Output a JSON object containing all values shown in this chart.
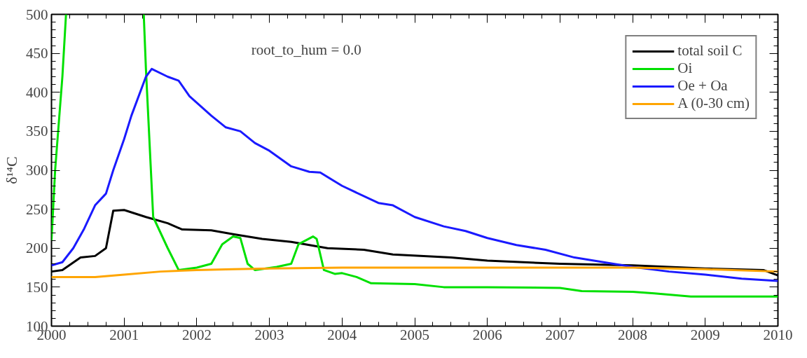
{
  "chart_data": {
    "type": "line",
    "ylabel": "δ¹⁴C",
    "xlim": [
      2000,
      2010
    ],
    "ylim": [
      100,
      500
    ],
    "xticks": [
      2000,
      2001,
      2002,
      2003,
      2004,
      2005,
      2006,
      2007,
      2008,
      2009,
      2010
    ],
    "yticks": [
      100,
      150,
      200,
      250,
      300,
      350,
      400,
      450,
      500
    ],
    "grid": false,
    "legend": "top right",
    "line_style": "solid",
    "marker": "none",
    "annotations": [
      "root_to_hum = 0.0"
    ],
    "series": [
      {
        "name": "total soil C",
        "color": "#000000",
        "x": [
          2000,
          2000.15,
          2000.4,
          2000.6,
          2000.75,
          2000.85,
          2001.0,
          2001.3,
          2001.6,
          2001.8,
          2002.2,
          2002.5,
          2002.9,
          2003.3,
          2003.8,
          2004.3,
          2004.7,
          2005.5,
          2006,
          2007,
          2008,
          2009,
          2009.8,
          2010
        ],
        "values": [
          170,
          172,
          188,
          190,
          200,
          248,
          249,
          240,
          232,
          224,
          223,
          218,
          212,
          208,
          200,
          198,
          192,
          188,
          184,
          180,
          178,
          174,
          172,
          165
        ]
      },
      {
        "name": "Oi",
        "color": "#00e000",
        "x": [
          2000,
          2000.05,
          2000.15,
          2000.2,
          2000.7,
          2001.27,
          2001.3,
          2001.4,
          2001.5,
          2001.6,
          2001.75,
          2002.0,
          2002.2,
          2002.35,
          2002.5,
          2002.6,
          2002.7,
          2002.8,
          2003.1,
          2003.3,
          2003.4,
          2003.6,
          2003.65,
          2003.75,
          2003.9,
          2004.0,
          2004.2,
          2004.4,
          2005.0,
          2005.4,
          2006,
          2007,
          2007.3,
          2008.0,
          2008.3,
          2008.8,
          2010
        ],
        "values": [
          210,
          300,
          420,
          500,
          null,
          500,
          430,
          240,
          220,
          200,
          172,
          175,
          180,
          205,
          215,
          213,
          180,
          172,
          176,
          180,
          205,
          215,
          212,
          172,
          167,
          168,
          163,
          155,
          154,
          150,
          150,
          149,
          145,
          144,
          142,
          138,
          138
        ]
      },
      {
        "name": "Oe + Oa",
        "color": "#1a1aff",
        "x": [
          2000,
          2000.15,
          2000.3,
          2000.45,
          2000.6,
          2000.75,
          2000.85,
          2001.0,
          2001.1,
          2001.3,
          2001.38,
          2001.6,
          2001.75,
          2001.9,
          2002.2,
          2002.4,
          2002.6,
          2002.8,
          2003.0,
          2003.3,
          2003.55,
          2003.7,
          2004.0,
          2004.5,
          2004.7,
          2005.0,
          2005.4,
          2005.7,
          2006.0,
          2006.4,
          2006.8,
          2007.2,
          2007.6,
          2008.0,
          2008.5,
          2009.0,
          2009.5,
          2010
        ],
        "values": [
          178,
          182,
          200,
          225,
          255,
          270,
          300,
          340,
          370,
          420,
          430,
          420,
          415,
          395,
          370,
          355,
          350,
          335,
          325,
          305,
          298,
          297,
          280,
          258,
          255,
          240,
          228,
          222,
          213,
          204,
          198,
          188,
          182,
          176,
          170,
          166,
          161,
          158
        ]
      },
      {
        "name": "A (0-30 cm)",
        "color": "#ffa500",
        "x": [
          2000,
          2000.6,
          2001,
          2001.5,
          2002,
          2002.5,
          2003,
          2004,
          2005,
          2006,
          2007,
          2008,
          2009,
          2010
        ],
        "values": [
          163,
          163,
          166,
          170,
          172,
          173,
          174,
          175,
          175,
          175,
          175,
          175,
          173,
          170
        ]
      }
    ]
  }
}
